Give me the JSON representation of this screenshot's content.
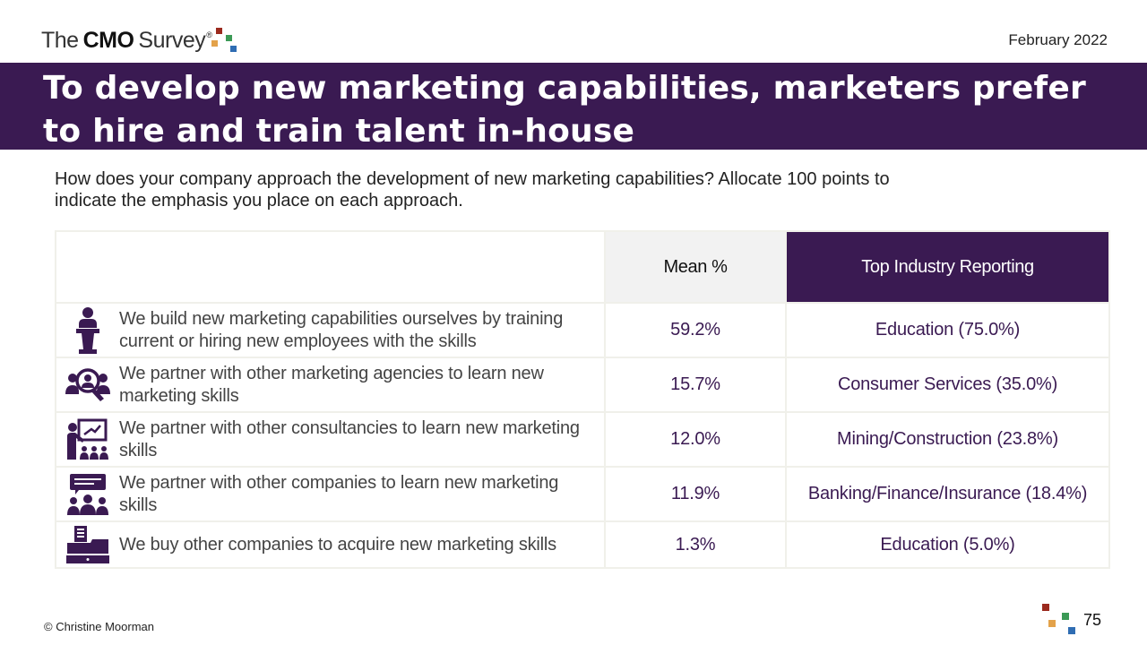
{
  "header": {
    "logo": {
      "the": "The",
      "cmo": "CMO",
      "survey": "Survey",
      "reg": "®"
    },
    "date": "February 2022"
  },
  "title": "To develop new marketing capabilities, marketers prefer to hire and train talent in-house",
  "question": "How does your company approach the development of new marketing capabilities? Allocate 100 points to indicate the emphasis you place on each approach.",
  "table": {
    "headers": {
      "approach": "",
      "mean": "Mean %",
      "industry": "Top Industry Reporting"
    },
    "rows": [
      {
        "icon": "speaker-podium-icon",
        "approach": "We build new marketing capabilities ourselves by training current or hiring new employees with the skills",
        "mean": "59.2%",
        "industry": "Education (75.0%)"
      },
      {
        "icon": "agency-search-people-icon",
        "approach": "We partner with other marketing agencies to learn new marketing skills",
        "mean": "15.7%",
        "industry": "Consumer Services (35.0%)"
      },
      {
        "icon": "presentation-training-icon",
        "approach": "We partner with other consultancies to learn new marketing skills",
        "mean": "12.0%",
        "industry": "Mining/Construction (23.8%)"
      },
      {
        "icon": "group-discussion-icon",
        "approach": "We partner with other companies to learn new marketing skills",
        "mean": "11.9%",
        "industry": "Banking/Finance/Insurance (18.4%)"
      },
      {
        "icon": "cash-register-icon",
        "approach": "We buy other companies to acquire new marketing skills",
        "mean": "1.3%",
        "industry": "Education (5.0%)"
      }
    ]
  },
  "footer": {
    "copyright": "© Christine Moorman",
    "page": "75"
  },
  "colors": {
    "brand_purple": "#3a1a52",
    "dot_red": "#9b2a1e",
    "dot_orange": "#e3a24a",
    "dot_green": "#3b9a56",
    "dot_blue": "#2f6db3"
  }
}
